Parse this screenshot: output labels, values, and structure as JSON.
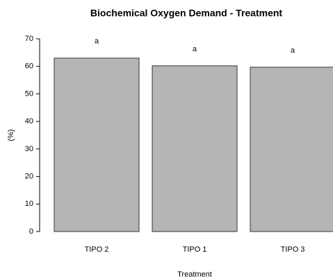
{
  "chart_data": {
    "type": "bar",
    "title": "Biochemical Oxygen Demand - Treatment",
    "xlabel": "Treatment",
    "ylabel": "(%)",
    "categories": [
      "TIPO 2",
      "TIPO 1",
      "TIPO 3"
    ],
    "values": [
      63,
      60.2,
      59.7
    ],
    "annotations": [
      "a",
      "a",
      "a"
    ],
    "color": "#b5b5b5",
    "ylim": [
      0,
      70
    ],
    "yticks": [
      0,
      10,
      20,
      30,
      40,
      50,
      60,
      70
    ],
    "grid": false
  }
}
